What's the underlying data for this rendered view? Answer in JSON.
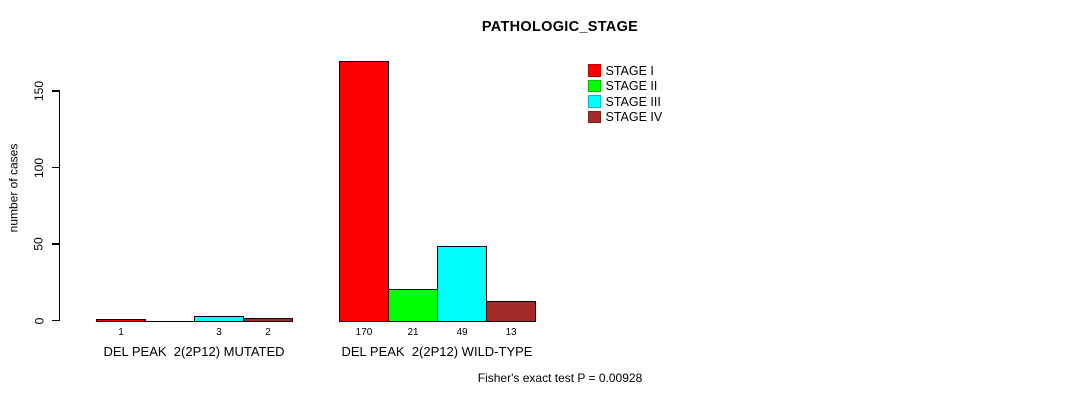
{
  "title": "PATHOLOGIC_STAGE",
  "chart_data": {
    "type": "bar",
    "title": "PATHOLOGIC_STAGE",
    "xlabel": "",
    "ylabel": "number of cases",
    "ylim": [
      0,
      175
    ],
    "yticks": [
      0,
      50,
      100,
      150
    ],
    "grid": false,
    "legend_position": "top-right",
    "categories": [
      "DEL PEAK  2(2P12) MUTATED",
      "DEL PEAK  2(2P12) WILD-TYPE"
    ],
    "series": [
      {
        "name": "STAGE I",
        "color": "#ff0000",
        "values": [
          1,
          170
        ]
      },
      {
        "name": "STAGE II",
        "color": "#00ff00",
        "values": [
          0,
          21
        ]
      },
      {
        "name": "STAGE III",
        "color": "#00ffff",
        "values": [
          3,
          49
        ]
      },
      {
        "name": "STAGE IV",
        "color": "#a52a2a",
        "values": [
          2,
          13
        ]
      }
    ],
    "bar_count_labels": [
      [
        "1",
        "",
        "3",
        "2"
      ],
      [
        "170",
        "21",
        "49",
        "13"
      ]
    ],
    "annotation": "Fisher's exact test P = 0.00928"
  }
}
